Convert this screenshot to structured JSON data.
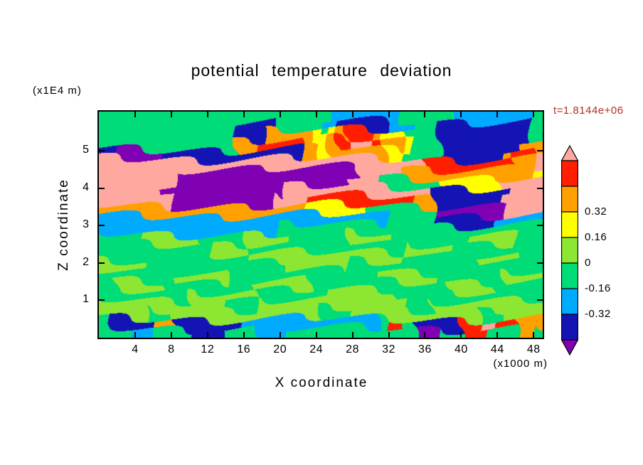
{
  "title": "potential temperature deviation",
  "annotations": {
    "time_label": "t=1.8144e+06",
    "time_label_color": "#B03020",
    "y_axis_unit": "(x1E4 m)",
    "x_axis_unit": "(x1000 m)"
  },
  "axes": {
    "x_label": "X coordinate",
    "y_label": "Z coordinate",
    "x_ticks": [
      4,
      8,
      12,
      16,
      20,
      24,
      28,
      32,
      36,
      40,
      44,
      48
    ],
    "y_ticks": [
      1,
      2,
      3,
      4,
      5
    ],
    "x_range": [
      0,
      49
    ],
    "z_range": [
      0,
      6.05
    ]
  },
  "colorbar": {
    "segment_colors_top_to_bottom": [
      "#FF1E00",
      "#FFA000",
      "#FFFF00",
      "#8CE632",
      "#00DC78",
      "#00AAFF",
      "#1414B4"
    ],
    "arrow_top_color": "#FFA8A0",
    "arrow_bottom_color": "#8000B4",
    "labels": [
      {
        "text": "0.32",
        "boundary": 2
      },
      {
        "text": "0.16",
        "boundary": 3
      },
      {
        "text": "0",
        "boundary": 4
      },
      {
        "text": "-0.16",
        "boundary": 5
      },
      {
        "text": "-0.32",
        "boundary": 6
      }
    ]
  },
  "chart_data": {
    "type": "heatmap",
    "title": "potential temperature deviation",
    "xlabel": "X coordinate",
    "ylabel": "Z coordinate",
    "x_unit": "(x1000 m)",
    "z_unit": "(x1E4 m)",
    "time": "t=1.8144e+06",
    "x_range": [
      0,
      49
    ],
    "z_range": [
      0,
      6.05
    ],
    "contour_levels": [
      -0.48,
      -0.32,
      -0.16,
      0,
      0.16,
      0.32,
      0.48,
      0.64
    ],
    "palette": [
      {
        "name": "purple",
        "color": "#8000B4",
        "range": "< -0.48"
      },
      {
        "name": "navy",
        "color": "#1414B4",
        "range": "-0.48 to -0.32"
      },
      {
        "name": "cyan",
        "color": "#00AAFF",
        "range": "-0.32 to -0.16"
      },
      {
        "name": "green",
        "color": "#00DC78",
        "range": "-0.16 to 0"
      },
      {
        "name": "light-green",
        "color": "#8CE632",
        "range": "0 to 0.16"
      },
      {
        "name": "yellow",
        "color": "#FFFF00",
        "range": "0.16 to 0.32"
      },
      {
        "name": "orange",
        "color": "#FFA000",
        "range": "0.32 to 0.48"
      },
      {
        "name": "red",
        "color": "#FF1E00",
        "range": "0.48 to 0.64"
      },
      {
        "name": "pink",
        "color": "#FFA8A0",
        "range": "> 0.64"
      }
    ],
    "grid_encoding": "each character is a palette index; rows run from z=6.05 (top) to z=0 (bottom), columns from x=0 to x=49",
    "grid_rows_top_to_bottom": [
      "333333333333333333333333322222222333333222222223",
      "333333333333333111133333221111112233311111111113",
      "333333333333333111666665356777655333311111111113",
      "333333333333333667777765567888766533311111111166",
      "110000011111111111111166566666655333311111116776",
      "888888888888888888888888888888888887777777777668",
      "888888880000000000000000000088888666666666666665",
      "888888880000000000000000000888333333355555588888",
      "888888000000000000008888888888888888111111118888",
      "888888880000000000088877777777777766111111188888",
      "666666666666666666666655555553333333000000008888",
      "222222222222222222222222222222233333111111122222",
      "222222222222222222233333333333333333333333333333",
      "333334444443333344444333333444443333333344444333",
      "333333333333444433333333333333333444443333333333",
      "333333333333333344444444444444444333333334444433",
      "444443333333333333334444444333333333333333333333",
      "333333334444443333333333333333444444433333334444",
      "334444433333333334444443333333333333334444433333",
      "333333333344444443333333344444443333333333333333",
      "444444444444443334444444444444444333444444444444",
      "444443334444444444444444333444444444444443334444",
      "311111661111111222222222222222377311111778877666",
      "333222333311133332223333333333333300033777333663"
    ]
  }
}
